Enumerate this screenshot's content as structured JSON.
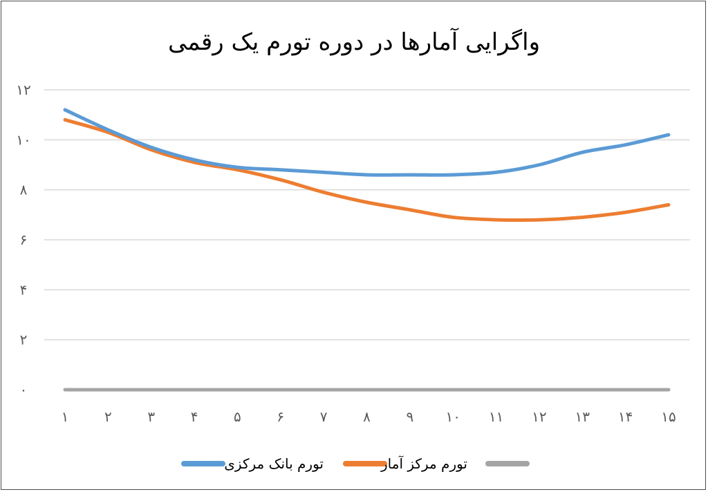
{
  "chart_data": {
    "type": "line",
    "title": "واگرایی آمارها در دوره تورم یک رقمی",
    "x": [
      "۱",
      "۲",
      "۳",
      "۴",
      "۵",
      "۶",
      "۷",
      "۸",
      "۹",
      "۱۰",
      "۱۱",
      "۱۲",
      "۱۳",
      "۱۴",
      "۱۵"
    ],
    "y_ticks": [
      "۰",
      "۲",
      "۴",
      "۶",
      "۸",
      "۱۰",
      "۱۲"
    ],
    "ylim": [
      0,
      12
    ],
    "grid": true,
    "legend_position": "bottom",
    "series": [
      {
        "name": "تورم بانک مرکزی",
        "color": "#5b9bd5",
        "values": [
          11.2,
          10.4,
          9.7,
          9.2,
          8.9,
          8.8,
          8.7,
          8.6,
          8.6,
          8.6,
          8.7,
          9.0,
          9.5,
          9.8,
          10.2
        ]
      },
      {
        "name": "تورم مرکز آمار",
        "color": "#ed7d31",
        "values": [
          10.8,
          10.3,
          9.6,
          9.1,
          8.8,
          8.4,
          7.9,
          7.5,
          7.2,
          6.9,
          6.8,
          6.8,
          6.9,
          7.1,
          7.4
        ]
      },
      {
        "name": "",
        "color": "#a5a5a5",
        "values": [
          0,
          0,
          0,
          0,
          0,
          0,
          0,
          0,
          0,
          0,
          0,
          0,
          0,
          0,
          0
        ]
      }
    ]
  }
}
